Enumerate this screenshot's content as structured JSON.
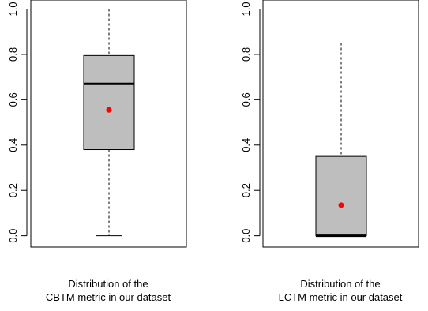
{
  "chart_data": [
    {
      "type": "box",
      "panel": "left",
      "caption_line1": "Distribution of the",
      "caption_line2": "CBTM metric in our dataset",
      "ylim": [
        -0.05,
        1.04
      ],
      "y_ticks": [
        "0.0",
        "0.2",
        "0.4",
        "0.6",
        "0.8",
        "1.0"
      ],
      "y_tick_values": [
        0.0,
        0.2,
        0.4,
        0.6,
        0.8,
        1.0
      ],
      "stats": {
        "min": 0.0,
        "q1": 0.38,
        "median": 0.67,
        "q3": 0.795,
        "max": 1.0,
        "mean": 0.555
      },
      "box_color": "#bebebe",
      "mean_color": "#ff0000"
    },
    {
      "type": "box",
      "panel": "right",
      "caption_line1": "Distribution of the",
      "caption_line2": "LCTM metric in our dataset",
      "ylim": [
        -0.05,
        1.04
      ],
      "y_ticks": [
        "0.0",
        "0.2",
        "0.4",
        "0.6",
        "0.8",
        "1.0"
      ],
      "y_tick_values": [
        0.0,
        0.2,
        0.4,
        0.6,
        0.8,
        1.0
      ],
      "stats": {
        "min": 0.0,
        "q1": 0.0,
        "median": 0.0,
        "q3": 0.35,
        "max": 0.85,
        "mean": 0.135
      },
      "box_color": "#bebebe",
      "mean_color": "#ff0000"
    }
  ]
}
